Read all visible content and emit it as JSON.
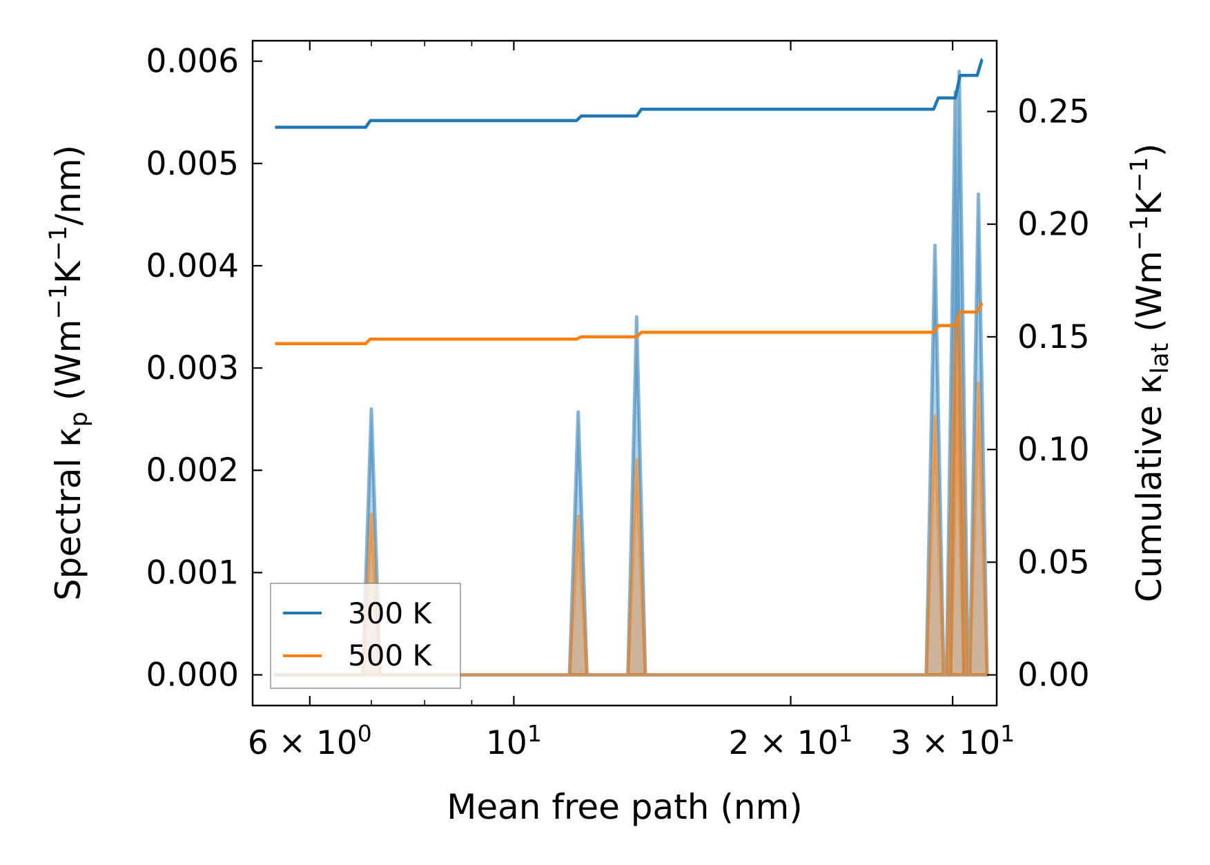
{
  "chart_data": {
    "type": "line",
    "xlabel": "Mean free path (nm)",
    "ylabel_left": {
      "prefix": "Spectral κ",
      "sub": "p",
      "units_open": " (Wm",
      "sup1": "−1",
      "mid": "K",
      "sup2": "−1",
      "tail": "/nm)"
    },
    "ylabel_right": {
      "prefix": "Cumulative κ",
      "sub": "lat",
      "units_open": " (Wm",
      "sup1": "−1",
      "mid": "K",
      "sup2": "−1",
      "tail": ")"
    },
    "xscale": "log",
    "xlim": [
      5.2,
      33.5
    ],
    "ylim_left": [
      -0.0003,
      0.0062
    ],
    "ylim_right": [
      -0.0136,
      0.2814
    ],
    "x_major_ticks": [
      {
        "value": 6,
        "base": "6 × 10",
        "exp": "0"
      },
      {
        "value": 10,
        "base": "10",
        "exp": "1"
      },
      {
        "value": 20,
        "base": "2 × 10",
        "exp": "1"
      },
      {
        "value": 30,
        "base": "3 × 10",
        "exp": "1"
      }
    ],
    "x_minor_ticks": [
      6,
      7,
      8,
      9,
      20,
      30
    ],
    "y_left_ticks": [
      "0.000",
      "0.001",
      "0.002",
      "0.003",
      "0.004",
      "0.005",
      "0.006"
    ],
    "y_right_ticks": [
      "0.00",
      "0.05",
      "0.10",
      "0.15",
      "0.20",
      "0.25"
    ],
    "legend": {
      "position": "lower-left",
      "entries": [
        {
          "label": "300 K",
          "color": "#1f77b4"
        },
        {
          "label": "500 K",
          "color": "#ff7f0e"
        }
      ]
    },
    "series": [
      {
        "name": "300 K",
        "color": "#1f77b4",
        "x_range": [
          5.5,
          32.3
        ],
        "spectral_peaks": [
          {
            "x": 7.0,
            "value": 0.0026
          },
          {
            "x": 11.75,
            "value": 0.00257
          },
          {
            "x": 13.6,
            "value": 0.0035
          },
          {
            "x": 28.7,
            "value": 0.0042
          },
          {
            "x": 30.2,
            "value": 0.0057
          },
          {
            "x": 30.5,
            "value": 0.0059
          },
          {
            "x": 32.0,
            "value": 0.0047
          }
        ],
        "cumulative": {
          "start": 0.243,
          "steps": [
            {
              "x": 6.9,
              "value": 0.246
            },
            {
              "x": 11.7,
              "value": 0.248
            },
            {
              "x": 13.6,
              "value": 0.251
            },
            {
              "x": 28.6,
              "value": 0.256
            },
            {
              "x": 30.2,
              "value": 0.266
            },
            {
              "x": 31.9,
              "value": 0.273
            }
          ]
        }
      },
      {
        "name": "500 K",
        "color": "#ff7f0e",
        "x_range": [
          5.5,
          32.3
        ],
        "spectral_peaks": [
          {
            "x": 7.0,
            "value": 0.00157
          },
          {
            "x": 11.75,
            "value": 0.00155
          },
          {
            "x": 13.6,
            "value": 0.0021
          },
          {
            "x": 28.7,
            "value": 0.00253
          },
          {
            "x": 30.2,
            "value": 0.0034
          },
          {
            "x": 30.5,
            "value": 0.0035
          },
          {
            "x": 32.0,
            "value": 0.00285
          }
        ],
        "cumulative": {
          "start": 0.147,
          "steps": [
            {
              "x": 6.9,
              "value": 0.149
            },
            {
              "x": 11.7,
              "value": 0.15
            },
            {
              "x": 13.6,
              "value": 0.152
            },
            {
              "x": 28.6,
              "value": 0.155
            },
            {
              "x": 30.2,
              "value": 0.161
            },
            {
              "x": 31.9,
              "value": 0.165
            }
          ]
        }
      }
    ]
  }
}
